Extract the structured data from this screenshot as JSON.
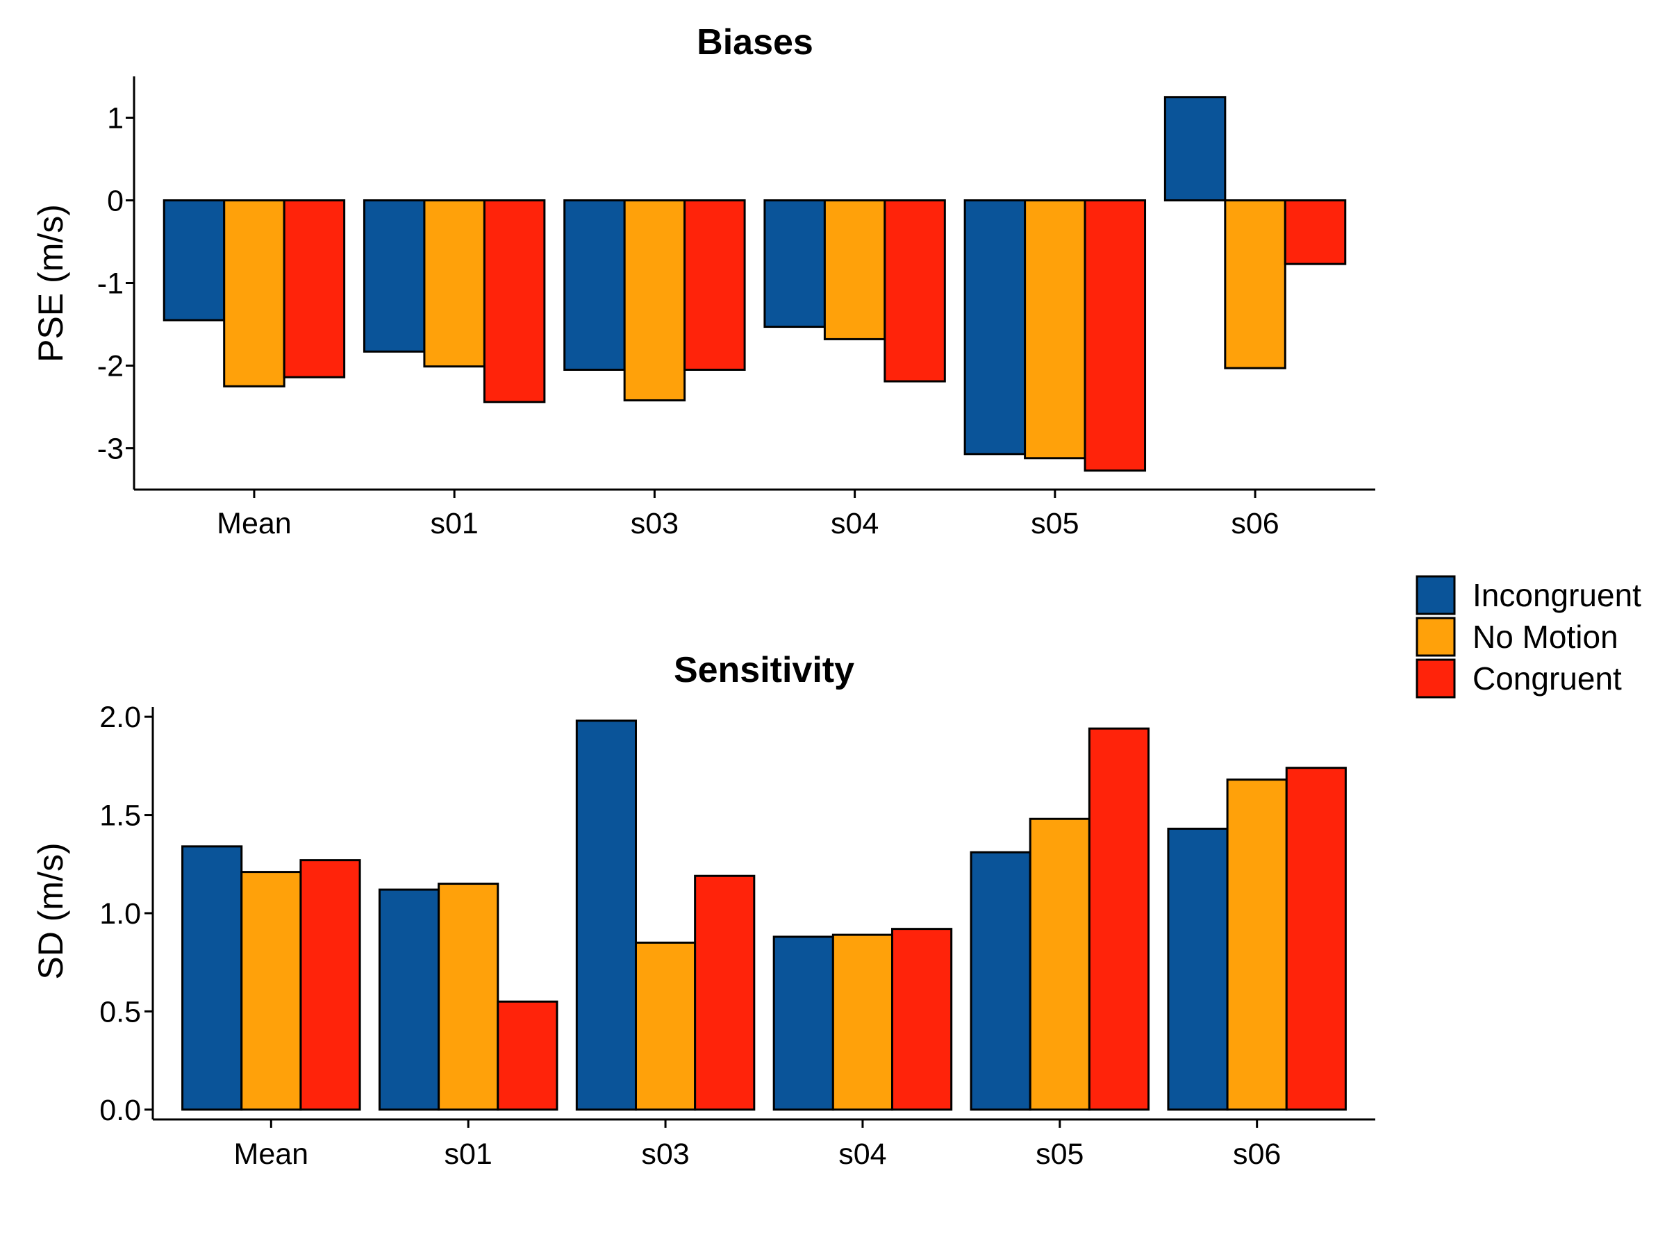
{
  "colors": {
    "Incongruent": "#0A5499",
    "No Motion": "#FFA10A",
    "Congruent": "#FF230A"
  },
  "legend": {
    "items": [
      "Incongruent",
      "No Motion",
      "Congruent"
    ],
    "placement": "right"
  },
  "chart_data": [
    {
      "type": "bar",
      "title": "Biases",
      "xlabel": "",
      "ylabel": "PSE (m/s)",
      "ylim": [
        -3.5,
        1.5
      ],
      "yticks": [
        1,
        0,
        -1,
        -2,
        -3
      ],
      "ytick_labels": [
        "1",
        "0",
        "-1",
        "-2",
        "-3"
      ],
      "categories": [
        "Mean",
        "s01",
        "s03",
        "s04",
        "s05",
        "s06"
      ],
      "series": [
        {
          "name": "Incongruent",
          "values": [
            -1.45,
            -1.83,
            -2.05,
            -1.53,
            -3.07,
            1.25
          ]
        },
        {
          "name": "No Motion",
          "values": [
            -2.25,
            -2.01,
            -2.42,
            -1.68,
            -3.12,
            -2.03
          ]
        },
        {
          "name": "Congruent",
          "values": [
            -2.14,
            -2.44,
            -2.05,
            -2.19,
            -3.27,
            -0.77
          ]
        }
      ],
      "grid": false
    },
    {
      "type": "bar",
      "title": "Sensitivity",
      "xlabel": "",
      "ylabel": "SD (m/s)",
      "ylim": [
        -0.05,
        2.05
      ],
      "yticks": [
        0,
        0.5,
        1,
        1.5,
        2
      ],
      "ytick_labels": [
        "0.0",
        "0.5",
        "1.0",
        "1.5",
        "2.0"
      ],
      "categories": [
        "Mean",
        "s01",
        "s03",
        "s04",
        "s05",
        "s06"
      ],
      "series": [
        {
          "name": "Incongruent",
          "values": [
            1.34,
            1.12,
            1.98,
            0.88,
            1.31,
            1.43
          ]
        },
        {
          "name": "No Motion",
          "values": [
            1.21,
            1.15,
            0.85,
            0.89,
            1.48,
            1.68
          ]
        },
        {
          "name": "Congruent",
          "values": [
            1.27,
            0.55,
            1.19,
            0.92,
            1.94,
            1.74
          ]
        }
      ],
      "grid": false
    }
  ]
}
